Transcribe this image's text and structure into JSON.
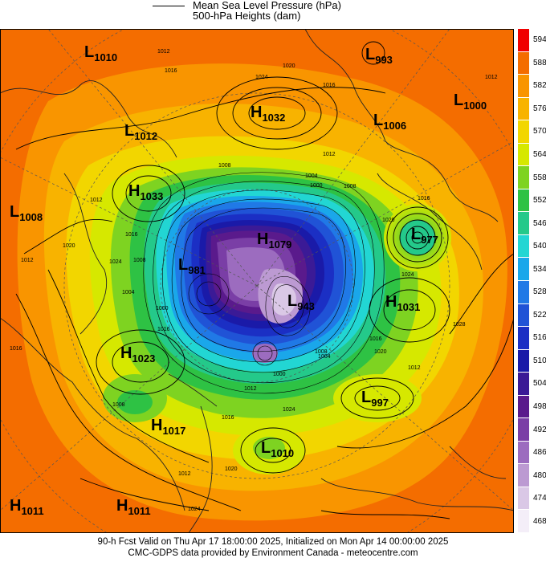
{
  "legend": {
    "line_label": "Mean Sea Level Pressure (hPa)",
    "fill_label": "500-hPa Heights (dam)"
  },
  "footer": {
    "line1": "90-h Fcst Valid on Thu Apr 17 18:00:00 2025, Initialized on Mon Apr 14 00:00:00 2025",
    "line2": "CMC-GDPS data provided by Environment Canada - meteocentre.com"
  },
  "colorbar": {
    "ticks": [
      "594",
      "588",
      "582",
      "576",
      "570",
      "564",
      "558",
      "552",
      "546",
      "540",
      "534",
      "528",
      "522",
      "516",
      "510",
      "504",
      "498",
      "492",
      "486",
      "480",
      "474",
      "468"
    ],
    "colors": [
      "#f00000",
      "#f46d00",
      "#f99500",
      "#f8b300",
      "#f2d600",
      "#d6e800",
      "#7ed321",
      "#2ec244",
      "#24c98a",
      "#22d6d3",
      "#1aa7ea",
      "#2079e6",
      "#2053d6",
      "#1b2fc4",
      "#1a1aa8",
      "#3b1a96",
      "#5a1a8c",
      "#7a3ea6",
      "#9c6cbf",
      "#bc9ad2",
      "#dac8e6",
      "#f4eef8"
    ]
  },
  "centers": [
    {
      "type": "L",
      "value": "1010"
    },
    {
      "type": "L",
      "value": "993"
    },
    {
      "type": "H",
      "value": "1032"
    },
    {
      "type": "L",
      "value": "1000"
    },
    {
      "type": "L",
      "value": "1012"
    },
    {
      "type": "L",
      "value": "1006"
    },
    {
      "type": "H",
      "value": "1033"
    },
    {
      "type": "L",
      "value": "1008"
    },
    {
      "type": "L",
      "value": "977"
    },
    {
      "type": "H",
      "value": "1079"
    },
    {
      "type": "L",
      "value": "981"
    },
    {
      "type": "L",
      "value": "943"
    },
    {
      "type": "H",
      "value": "1031"
    },
    {
      "type": "H",
      "value": "1023"
    },
    {
      "type": "L",
      "value": "997"
    },
    {
      "type": "H",
      "value": "1017"
    },
    {
      "type": "L",
      "value": "1010"
    },
    {
      "type": "H",
      "value": "1011"
    },
    {
      "type": "H",
      "value": "1011"
    }
  ],
  "isobar_labels": [
    "1012",
    "1016",
    "1020",
    "1024",
    "1016",
    "1012",
    "1008",
    "1004",
    "1000",
    "1008",
    "1012",
    "1016",
    "1020",
    "1024",
    "1008",
    "1004",
    "1000",
    "1012",
    "1016",
    "1020",
    "1024",
    "1028",
    "1012",
    "1016",
    "1008",
    "1004",
    "1000",
    "1020",
    "1024",
    "1012",
    "1016",
    "1020",
    "1024",
    "1012",
    "1016",
    "1008",
    "1012",
    "1016"
  ]
}
